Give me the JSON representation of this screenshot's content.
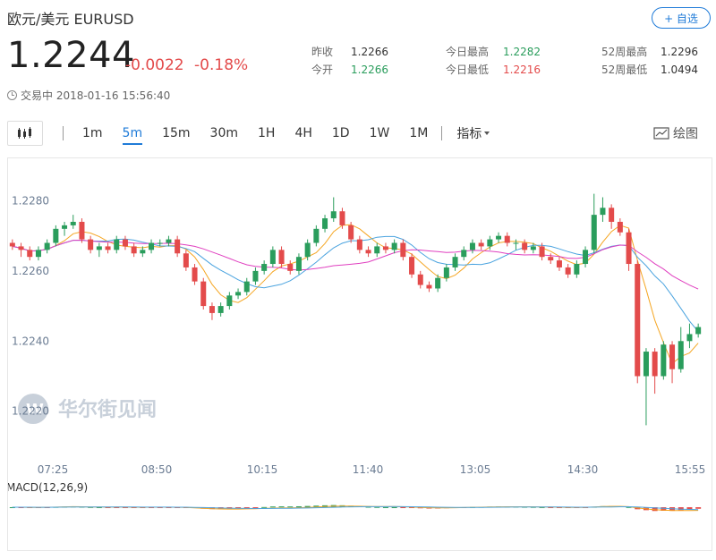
{
  "header": {
    "title": "欧元/美元 EURUSD",
    "follow_label": "+ 自选",
    "price": "1.2244",
    "change": "-0.0022",
    "change_pct": "-0.18%",
    "status_text": "交易中 2018-01-16 15:56:40"
  },
  "stats": [
    {
      "label": "昨收",
      "value": "1.2266",
      "color": "#333333"
    },
    {
      "label": "今开",
      "value": "1.2266",
      "color": "#2a9d5c"
    },
    {
      "label": "今日最高",
      "value": "1.2282",
      "color": "#2a9d5c"
    },
    {
      "label": "今日最低",
      "value": "1.2216",
      "color": "#e34b4b"
    },
    {
      "label": "52周最高",
      "value": "1.2296",
      "color": "#333333"
    },
    {
      "label": "52周最低",
      "value": "1.0494",
      "color": "#333333"
    }
  ],
  "toolbar": {
    "periods": [
      "1m",
      "5m",
      "15m",
      "30m",
      "1H",
      "4H",
      "1D",
      "1W",
      "1M"
    ],
    "active": "5m",
    "indicator_label": "指标",
    "draw_label": "绘图"
  },
  "watermark": "华尔街见闻",
  "macd_label": "MACD(12,26,9)",
  "colors": {
    "up": "#2a9d5c",
    "down": "#e34b4b",
    "ma_fast": "#f5a623",
    "ma_mid": "#4aa3df",
    "ma_slow": "#e040c0"
  },
  "chart_data": {
    "type": "candlestick",
    "y_ticks": [
      1.228,
      1.226,
      1.224,
      1.222
    ],
    "ylim": [
      1.2211,
      1.2287
    ],
    "x_ticks": [
      "07:25",
      "08:50",
      "10:15",
      "11:40",
      "13:05",
      "14:30",
      "15:55"
    ],
    "candles": [
      [
        1.2268,
        1.2267,
        1.2269,
        1.2266
      ],
      [
        1.2267,
        1.2266,
        1.2268,
        1.2264
      ],
      [
        1.2266,
        1.2264,
        1.2267,
        1.2263
      ],
      [
        1.2264,
        1.2266,
        1.2267,
        1.2263
      ],
      [
        1.2266,
        1.2268,
        1.2269,
        1.2265
      ],
      [
        1.2268,
        1.2272,
        1.2273,
        1.2267
      ],
      [
        1.2272,
        1.2273,
        1.2274,
        1.227
      ],
      [
        1.2273,
        1.2274,
        1.2276,
        1.2272
      ],
      [
        1.2274,
        1.2269,
        1.2275,
        1.2268
      ],
      [
        1.2269,
        1.2266,
        1.227,
        1.2265
      ],
      [
        1.2266,
        1.2267,
        1.2268,
        1.2264
      ],
      [
        1.2267,
        1.2266,
        1.2268,
        1.2265
      ],
      [
        1.2266,
        1.2269,
        1.227,
        1.2265
      ],
      [
        1.2269,
        1.2267,
        1.227,
        1.2266
      ],
      [
        1.2267,
        1.2265,
        1.2268,
        1.2264
      ],
      [
        1.2265,
        1.2266,
        1.2267,
        1.2264
      ],
      [
        1.2266,
        1.2268,
        1.2269,
        1.2265
      ],
      [
        1.2268,
        1.2268,
        1.2269,
        1.2267
      ],
      [
        1.2268,
        1.2269,
        1.227,
        1.2267
      ],
      [
        1.2269,
        1.2265,
        1.227,
        1.2264
      ],
      [
        1.2265,
        1.2261,
        1.2266,
        1.226
      ],
      [
        1.2261,
        1.2257,
        1.2262,
        1.2256
      ],
      [
        1.2257,
        1.225,
        1.2258,
        1.2249
      ],
      [
        1.225,
        1.2248,
        1.2251,
        1.2246
      ],
      [
        1.2248,
        1.225,
        1.2251,
        1.2247
      ],
      [
        1.225,
        1.2253,
        1.2254,
        1.2249
      ],
      [
        1.2253,
        1.2254,
        1.2255,
        1.2252
      ],
      [
        1.2254,
        1.2257,
        1.2258,
        1.2253
      ],
      [
        1.2257,
        1.226,
        1.2261,
        1.2256
      ],
      [
        1.226,
        1.2262,
        1.2263,
        1.2259
      ],
      [
        1.2262,
        1.2266,
        1.2267,
        1.2261
      ],
      [
        1.2266,
        1.2262,
        1.2267,
        1.2261
      ],
      [
        1.2262,
        1.226,
        1.2263,
        1.2259
      ],
      [
        1.226,
        1.2264,
        1.2265,
        1.2259
      ],
      [
        1.2264,
        1.2268,
        1.2269,
        1.2263
      ],
      [
        1.2268,
        1.2272,
        1.2273,
        1.2267
      ],
      [
        1.2272,
        1.2275,
        1.2276,
        1.2271
      ],
      [
        1.2275,
        1.2277,
        1.2281,
        1.2274
      ],
      [
        1.2277,
        1.2273,
        1.2278,
        1.2272
      ],
      [
        1.2273,
        1.2269,
        1.2274,
        1.2268
      ],
      [
        1.2269,
        1.2266,
        1.227,
        1.2265
      ],
      [
        1.2266,
        1.2265,
        1.2267,
        1.2264
      ],
      [
        1.2265,
        1.2267,
        1.2268,
        1.2264
      ],
      [
        1.2267,
        1.2266,
        1.2268,
        1.2265
      ],
      [
        1.2266,
        1.2268,
        1.2269,
        1.2265
      ],
      [
        1.2268,
        1.2264,
        1.2269,
        1.2263
      ],
      [
        1.2264,
        1.2259,
        1.2265,
        1.2258
      ],
      [
        1.2259,
        1.2256,
        1.226,
        1.2255
      ],
      [
        1.2256,
        1.2255,
        1.2257,
        1.2254
      ],
      [
        1.2255,
        1.2258,
        1.2259,
        1.2254
      ],
      [
        1.2258,
        1.2261,
        1.2262,
        1.2257
      ],
      [
        1.2261,
        1.2264,
        1.2265,
        1.226
      ],
      [
        1.2264,
        1.2266,
        1.2267,
        1.2263
      ],
      [
        1.2266,
        1.2268,
        1.2269,
        1.2265
      ],
      [
        1.2268,
        1.2267,
        1.2269,
        1.2266
      ],
      [
        1.2267,
        1.2269,
        1.227,
        1.2266
      ],
      [
        1.2269,
        1.227,
        1.2271,
        1.2268
      ],
      [
        1.227,
        1.2268,
        1.2271,
        1.2267
      ],
      [
        1.2268,
        1.2268,
        1.2269,
        1.2266
      ],
      [
        1.2268,
        1.2266,
        1.2269,
        1.2265
      ],
      [
        1.2266,
        1.2267,
        1.2268,
        1.2265
      ],
      [
        1.2267,
        1.2264,
        1.2268,
        1.2263
      ],
      [
        1.2264,
        1.2263,
        1.2265,
        1.2262
      ],
      [
        1.2263,
        1.2261,
        1.2264,
        1.226
      ],
      [
        1.2261,
        1.2259,
        1.2262,
        1.2258
      ],
      [
        1.2259,
        1.2262,
        1.2263,
        1.2258
      ],
      [
        1.2262,
        1.2266,
        1.2267,
        1.2261
      ],
      [
        1.2266,
        1.2276,
        1.2282,
        1.2265
      ],
      [
        1.2276,
        1.2278,
        1.2281,
        1.2274
      ],
      [
        1.2278,
        1.2274,
        1.2279,
        1.2272
      ],
      [
        1.2274,
        1.2271,
        1.2275,
        1.227
      ],
      [
        1.2271,
        1.2262,
        1.2272,
        1.226
      ],
      [
        1.2262,
        1.223,
        1.2263,
        1.2228
      ],
      [
        1.223,
        1.2237,
        1.2238,
        1.2216
      ],
      [
        1.2237,
        1.223,
        1.2238,
        1.2225
      ],
      [
        1.223,
        1.2239,
        1.224,
        1.2229
      ],
      [
        1.2239,
        1.2232,
        1.224,
        1.2228
      ],
      [
        1.2232,
        1.224,
        1.2244,
        1.2231
      ],
      [
        1.224,
        1.2242,
        1.2245,
        1.2238
      ],
      [
        1.2242,
        1.2244,
        1.2245,
        1.2241
      ]
    ]
  }
}
